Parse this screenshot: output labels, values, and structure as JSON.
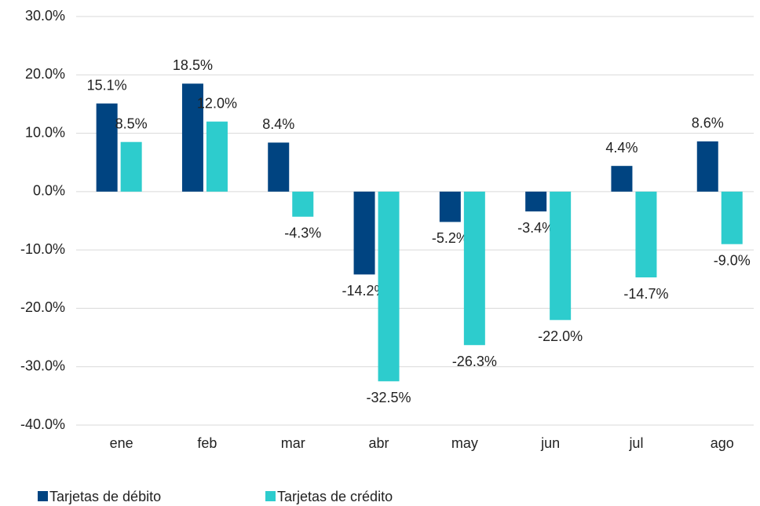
{
  "chart_data": {
    "type": "bar",
    "categories": [
      "ene",
      "feb",
      "mar",
      "abr",
      "may",
      "jun",
      "jul",
      "ago"
    ],
    "series": [
      {
        "name": "Tarjetas de débito",
        "color": "#004481",
        "values": [
          15.1,
          18.5,
          8.4,
          -14.2,
          -5.2,
          -3.4,
          4.4,
          8.6
        ],
        "value_labels": [
          "15.1%",
          "18.5%",
          "8.4%",
          "-14.2%",
          "-5.2%",
          "-3.4%",
          "4.4%",
          "8.6%"
        ]
      },
      {
        "name": "Tarjetas de crédito",
        "color": "#2dcccd",
        "values": [
          8.5,
          12.0,
          -4.3,
          -32.5,
          -26.3,
          -22.0,
          -14.7,
          -9.0
        ],
        "value_labels": [
          "8.5%",
          "12.0%",
          "-4.3%",
          "-32.5%",
          "-26.3%",
          "-22.0%",
          "-14.7%",
          "-9.0%"
        ]
      }
    ],
    "ylim": [
      -40,
      30
    ],
    "yticks": [
      {
        "value": -40,
        "label": "-40.0%"
      },
      {
        "value": -30,
        "label": "-30.0%"
      },
      {
        "value": -20,
        "label": "-20.0%"
      },
      {
        "value": -10,
        "label": "-10.0%"
      },
      {
        "value": 0,
        "label": "0.0%"
      },
      {
        "value": 10,
        "label": "10.0%"
      },
      {
        "value": 20,
        "label": "20.0%"
      },
      {
        "value": 30,
        "label": "30.0%"
      }
    ],
    "grid": true,
    "legend": "bottom-left"
  }
}
